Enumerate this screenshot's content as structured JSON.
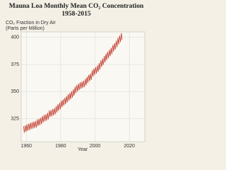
{
  "chart_data": {
    "type": "line",
    "title": "Mauna Loa Monthly Mean CO₂ Concentration",
    "subtitle": "1958-2015",
    "y_label": [
      "CO₂ Fraction in Dry Air",
      "(Parts per Million)"
    ],
    "x_label": "Year",
    "color": "#c23b2e",
    "grid": true,
    "xlim": [
      1957,
      2029
    ],
    "ylim": [
      304,
      405
    ],
    "xticks": [
      1960,
      1980,
      2000,
      2020
    ],
    "yticks": [
      325,
      350,
      375,
      400
    ],
    "x": [
      1958.4,
      1958.8,
      1959.4,
      1959.8,
      1960.4,
      1960.8,
      1961.4,
      1961.8,
      1962.4,
      1962.8,
      1963.4,
      1963.8,
      1964.4,
      1964.8,
      1965.4,
      1965.8,
      1966.4,
      1966.8,
      1967.4,
      1967.8,
      1968.4,
      1968.8,
      1969.4,
      1969.8,
      1970.4,
      1970.8,
      1971.4,
      1971.8,
      1972.4,
      1972.8,
      1973.4,
      1973.8,
      1974.4,
      1974.8,
      1975.4,
      1975.8,
      1976.4,
      1976.8,
      1977.4,
      1977.8,
      1978.4,
      1978.8,
      1979.4,
      1979.8,
      1980.4,
      1980.8,
      1981.4,
      1981.8,
      1982.4,
      1982.8,
      1983.4,
      1983.8,
      1984.4,
      1984.8,
      1985.4,
      1985.8,
      1986.4,
      1986.8,
      1987.4,
      1987.8,
      1988.4,
      1988.8,
      1989.4,
      1989.8,
      1990.4,
      1990.8,
      1991.4,
      1991.8,
      1992.4,
      1992.8,
      1993.4,
      1993.8,
      1994.4,
      1994.8,
      1995.4,
      1995.8,
      1996.4,
      1996.8,
      1997.4,
      1997.8,
      1998.4,
      1998.8,
      1999.4,
      1999.8,
      2000.4,
      2000.8,
      2001.4,
      2001.8,
      2002.4,
      2002.8,
      2003.4,
      2003.8,
      2004.4,
      2004.8,
      2005.4,
      2005.8,
      2006.4,
      2006.8,
      2007.4,
      2007.8,
      2008.4,
      2008.8,
      2009.4,
      2009.8,
      2010.4,
      2010.8,
      2011.4,
      2011.8,
      2012.4,
      2012.8,
      2013.4,
      2013.8,
      2014.4,
      2014.8,
      2015.4,
      2015.8
    ],
    "values": [
      318.3,
      312.3,
      319.0,
      313.0,
      319.9,
      313.9,
      320.6,
      314.6,
      321.4,
      315.4,
      322.0,
      316.0,
      322.6,
      316.6,
      323.0,
      317.0,
      324.4,
      318.4,
      325.2,
      319.2,
      326.0,
      320.0,
      327.6,
      321.6,
      328.7,
      322.7,
      329.3,
      323.3,
      330.5,
      324.5,
      332.7,
      326.7,
      333.2,
      327.2,
      334.1,
      328.1,
      335.0,
      329.0,
      336.8,
      330.8,
      338.4,
      332.4,
      339.8,
      333.8,
      341.7,
      335.7,
      343.1,
      337.1,
      344.4,
      338.4,
      346.0,
      340.0,
      347.6,
      341.6,
      349.0,
      343.0,
      350.4,
      344.4,
      352.2,
      346.2,
      354.6,
      348.6,
      356.1,
      350.1,
      357.4,
      351.4,
      358.6,
      352.6,
      359.4,
      353.4,
      360.1,
      354.1,
      361.8,
      355.8,
      363.8,
      357.8,
      365.6,
      359.6,
      366.7,
      360.7,
      369.7,
      363.7,
      371.4,
      365.4,
      372.6,
      366.6,
      374.1,
      368.1,
      376.2,
      370.2,
      378.8,
      372.8,
      380.5,
      374.5,
      382.8,
      376.8,
      384.9,
      378.9,
      386.8,
      380.8,
      388.6,
      382.6,
      390.4,
      384.4,
      392.9,
      386.9,
      394.7,
      388.7,
      396.9,
      390.9,
      399.5,
      393.5,
      401.6,
      395.6,
      403.8,
      397.8
    ]
  }
}
